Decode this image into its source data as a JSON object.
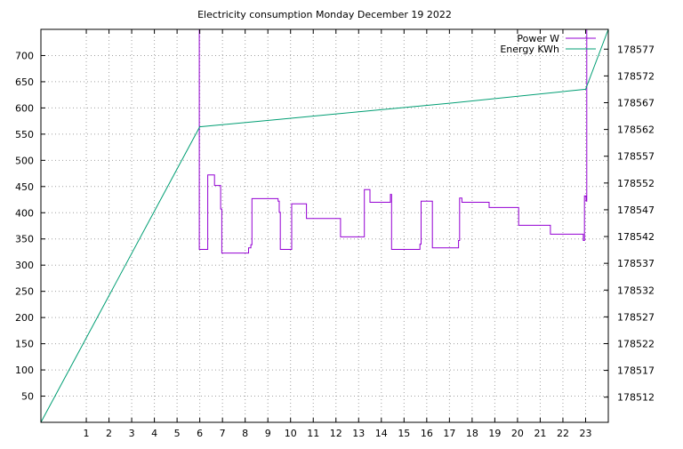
{
  "chart_data": {
    "type": "line",
    "title": "Electricity consumption Monday December 19 2022",
    "xlabel": "",
    "ylabel": "",
    "y2label": "",
    "x_ticks": [
      1,
      2,
      3,
      4,
      5,
      6,
      7,
      8,
      9,
      10,
      11,
      12,
      13,
      14,
      15,
      16,
      17,
      18,
      19,
      20,
      21,
      22,
      23
    ],
    "xlim": [
      -1,
      24
    ],
    "ylim": [
      0,
      750
    ],
    "y_ticks": [
      50,
      100,
      150,
      200,
      250,
      300,
      350,
      400,
      450,
      500,
      550,
      600,
      650,
      700
    ],
    "y2lim": [
      178507.3,
      178580.7
    ],
    "y2_ticks": [
      178512,
      178517,
      178522,
      178527,
      178532,
      178537,
      178542,
      178547,
      178552,
      178557,
      178562,
      178567,
      178572,
      178577
    ],
    "grid": true,
    "legend_position": "top-right",
    "series": [
      {
        "name": "Power W",
        "axis": "y",
        "color": "#9400d3",
        "points": [
          [
            5.98,
            750
          ],
          [
            5.98,
            330
          ],
          [
            6.35,
            330
          ],
          [
            6.35,
            472
          ],
          [
            6.65,
            472
          ],
          [
            6.65,
            452
          ],
          [
            6.92,
            452
          ],
          [
            6.92,
            407
          ],
          [
            6.97,
            407
          ],
          [
            6.97,
            323
          ],
          [
            8.15,
            323
          ],
          [
            8.15,
            333
          ],
          [
            8.25,
            333
          ],
          [
            8.25,
            339
          ],
          [
            8.3,
            339
          ],
          [
            8.3,
            427
          ],
          [
            9.45,
            427
          ],
          [
            9.45,
            422
          ],
          [
            9.5,
            422
          ],
          [
            9.5,
            401
          ],
          [
            9.55,
            401
          ],
          [
            9.55,
            330
          ],
          [
            10.05,
            330
          ],
          [
            10.05,
            417
          ],
          [
            10.7,
            417
          ],
          [
            10.7,
            389
          ],
          [
            12.2,
            389
          ],
          [
            12.2,
            354
          ],
          [
            13.25,
            354
          ],
          [
            13.25,
            444
          ],
          [
            13.5,
            444
          ],
          [
            13.5,
            420
          ],
          [
            14.4,
            420
          ],
          [
            14.4,
            435
          ],
          [
            14.45,
            435
          ],
          [
            14.45,
            330
          ],
          [
            15.7,
            330
          ],
          [
            15.7,
            340
          ],
          [
            15.75,
            340
          ],
          [
            15.75,
            422
          ],
          [
            16.25,
            422
          ],
          [
            16.25,
            333
          ],
          [
            17.4,
            333
          ],
          [
            17.4,
            347
          ],
          [
            17.45,
            347
          ],
          [
            17.45,
            428
          ],
          [
            17.55,
            428
          ],
          [
            17.55,
            420
          ],
          [
            18.75,
            420
          ],
          [
            18.75,
            410
          ],
          [
            20.05,
            410
          ],
          [
            20.05,
            376
          ],
          [
            21.45,
            376
          ],
          [
            21.45,
            359
          ],
          [
            22.9,
            359
          ],
          [
            22.9,
            347
          ],
          [
            22.95,
            347
          ],
          [
            22.95,
            432
          ],
          [
            23.02,
            432
          ],
          [
            23.02,
            422
          ],
          [
            23.05,
            422
          ],
          [
            23.05,
            750
          ]
        ]
      },
      {
        "name": "Energy KWh",
        "axis": "y2",
        "color": "#009e73",
        "points": [
          [
            -1,
            178507.3
          ],
          [
            6.0,
            178562.5
          ],
          [
            9.5,
            178563.9
          ],
          [
            13.0,
            178565.3
          ],
          [
            17.0,
            178566.9
          ],
          [
            23.0,
            178569.5
          ],
          [
            24.0,
            178580.7
          ]
        ]
      }
    ]
  }
}
